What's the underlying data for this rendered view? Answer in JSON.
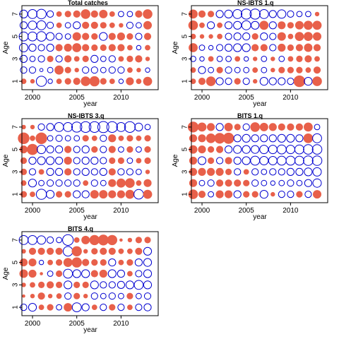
{
  "chart_data": [
    {
      "type": "scatter",
      "title": "Total catches",
      "xlabel": "year",
      "ylabel": "Age",
      "xlim": [
        1998.8,
        2014.2
      ],
      "ylim": [
        0.25,
        7.75
      ],
      "xticks": [
        2000,
        2005,
        2010
      ],
      "yticks": [
        1,
        3,
        5,
        7
      ],
      "series": [
        {
          "color": "#e8604a",
          "fill": "solid"
        },
        {
          "color": "#0000d0",
          "fill": "open"
        }
      ],
      "years": [
        1999,
        2000,
        2001,
        2002,
        2003,
        2004,
        2005,
        2006,
        2007,
        2008,
        2009,
        2010,
        2011,
        2012,
        2013
      ],
      "ages": [
        1,
        2,
        3,
        4,
        5,
        6,
        7
      ],
      "residuals": [
        [
          0.3,
          0.2,
          -1.0,
          -0.2,
          0.3,
          0.4,
          0.5,
          0.9,
          1.0,
          0.4,
          0.3,
          -0.2,
          0.6,
          0.3,
          0.8
        ],
        [
          -0.4,
          -0.4,
          -0.1,
          -0.3,
          0.8,
          0.4,
          0.2,
          -0.4,
          -0.4,
          -0.3,
          -0.4,
          -0.4,
          0.3,
          0.2,
          -0.2
        ],
        [
          -0.5,
          -0.3,
          -0.4,
          0.4,
          -0.4,
          0.5,
          0.3,
          0.4,
          -0.5,
          -0.3,
          -0.4,
          0.3,
          0.4,
          0.5,
          0.2
        ],
        [
          -0.7,
          -0.5,
          -0.4,
          -0.5,
          0.5,
          0.6,
          0.8,
          0.5,
          0.4,
          0.4,
          0.5,
          0.5,
          0.3,
          -0.2,
          0.3
        ],
        [
          -0.8,
          -0.8,
          -0.9,
          -0.6,
          -0.4,
          -0.3,
          0.7,
          0.5,
          0.4,
          -0.6,
          0.5,
          0.6,
          0.4,
          -0.4,
          0.5
        ],
        [
          -0.5,
          -0.7,
          -0.8,
          -0.4,
          0.3,
          -0.3,
          -0.5,
          0.5,
          0.5,
          0.4,
          0.3,
          0.2,
          -0.4,
          -0.3,
          0.7
        ],
        [
          -0.6,
          -0.8,
          -0.9,
          -0.4,
          0.3,
          0.4,
          0.5,
          0.9,
          0.5,
          0.7,
          0.3,
          -0.3,
          -0.3,
          0.5,
          0.9
        ]
      ]
    },
    {
      "type": "scatter",
      "title": "NS-IBTS 1.q",
      "xlabel": "year",
      "ylabel": "Age",
      "xlim": [
        1998.8,
        2014.2
      ],
      "ylim": [
        0.25,
        7.75
      ],
      "xticks": [
        2000,
        2005,
        2010
      ],
      "yticks": [
        1,
        3,
        5,
        7
      ],
      "series": [
        {
          "color": "#e8604a",
          "fill": "solid"
        },
        {
          "color": "#0000d0",
          "fill": "open"
        }
      ],
      "years": [
        1999,
        2000,
        2001,
        2002,
        2003,
        2004,
        2005,
        2006,
        2007,
        2008,
        2009,
        2010,
        2011,
        2012,
        2013
      ],
      "ages": [
        1,
        2,
        3,
        4,
        5,
        6,
        7
      ],
      "residuals": [
        [
          0.3,
          0.5,
          0.9,
          -0.5,
          -0.4,
          0.4,
          -0.4,
          0.2,
          -0.6,
          -0.5,
          -0.5,
          -0.4,
          1.3,
          -0.6,
          0.9
        ],
        [
          0.3,
          -0.5,
          -0.3,
          0.4,
          -0.4,
          -0.3,
          -0.3,
          0.3,
          -0.3,
          0.2,
          0.4,
          0.4,
          0.4,
          0.3,
          0.5
        ],
        [
          -0.3,
          -0.2,
          0.3,
          -0.3,
          -0.3,
          0.3,
          -0.2,
          0.2,
          -0.3,
          0.2,
          -0.3,
          0.3,
          0.4,
          0.5,
          0.3
        ],
        [
          0.8,
          -0.3,
          -0.2,
          -0.4,
          -0.5,
          -0.6,
          -0.6,
          0.5,
          0.5,
          -0.4,
          0.6,
          0.4,
          0.5,
          0.7,
          0.5
        ],
        [
          0.3,
          0.2,
          0.2,
          0.3,
          -0.4,
          -0.5,
          -0.5,
          0.4,
          -0.5,
          -0.4,
          0.7,
          0.3,
          0.8,
          0.8,
          0.7
        ],
        [
          0.9,
          0.3,
          -0.5,
          0.3,
          -0.5,
          -0.6,
          -0.8,
          -0.6,
          0.8,
          -0.5,
          0.6,
          0.4,
          0.7,
          0.8,
          0.8
        ],
        [
          0.8,
          0.5,
          0.4,
          -0.5,
          -0.6,
          -0.8,
          -1.0,
          -1.0,
          -0.8,
          -0.5,
          -0.7,
          -0.4,
          -0.3,
          -0.3,
          0.2
        ]
      ]
    },
    {
      "type": "scatter",
      "title": "NS-IBTS 3.q",
      "xlabel": "year",
      "ylabel": "Age",
      "xlim": [
        1998.8,
        2014.2
      ],
      "ylim": [
        0.25,
        7.75
      ],
      "xticks": [
        2000,
        2005,
        2010
      ],
      "yticks": [
        1,
        3,
        5,
        7
      ],
      "series": [
        {
          "color": "#e8604a",
          "fill": "solid"
        },
        {
          "color": "#0000d0",
          "fill": "open"
        }
      ],
      "years": [
        1999,
        2000,
        2001,
        2002,
        2003,
        2004,
        2005,
        2006,
        2007,
        2008,
        2009,
        2010,
        2011,
        2012,
        2013
      ],
      "ages": [
        1,
        2,
        3,
        4,
        5,
        6,
        7
      ],
      "residuals": [
        [
          0.4,
          0.3,
          -1.0,
          -0.6,
          0.4,
          0.4,
          -0.5,
          -0.5,
          0.7,
          0.7,
          0.6,
          0.6,
          0.8,
          -0.9,
          0.8
        ],
        [
          0.3,
          -0.6,
          -0.3,
          -0.4,
          -0.4,
          -0.4,
          -0.4,
          0.3,
          -0.4,
          -0.3,
          0.6,
          0.8,
          0.9,
          0.3,
          0.6
        ],
        [
          0.4,
          -0.4,
          0.3,
          -0.5,
          -0.5,
          0.5,
          -0.4,
          -0.5,
          -0.4,
          -0.5,
          0.5,
          -0.4,
          -0.4,
          -0.3,
          0.2
        ],
        [
          0.4,
          -0.5,
          -0.6,
          -0.6,
          -0.5,
          0.6,
          -0.4,
          -0.5,
          -0.5,
          -0.4,
          0.4,
          0.4,
          -0.3,
          0.3,
          0.4
        ],
        [
          0.6,
          1.2,
          -0.7,
          -0.5,
          -0.5,
          0.5,
          -0.4,
          -0.5,
          0.4,
          -0.4,
          0.5,
          -0.3,
          0.4,
          -0.3,
          0.4
        ],
        [
          1.3,
          0.3,
          1.3,
          -0.3,
          -0.4,
          -0.3,
          -0.3,
          0.4,
          0.3,
          -0.4,
          0.6,
          0.3,
          0.4,
          0.3,
          0.4
        ],
        [
          0.2,
          0.2,
          -0.4,
          -0.5,
          -0.8,
          -0.8,
          -1.0,
          -1.1,
          -1.1,
          -1.2,
          -1.1,
          -0.8,
          -1.1,
          -0.6,
          -0.3
        ]
      ]
    },
    {
      "type": "scatter",
      "title": "BITS 1.q",
      "xlabel": "year",
      "ylabel": "Age",
      "xlim": [
        1998.8,
        2014.2
      ],
      "ylim": [
        0.25,
        7.75
      ],
      "xticks": [
        2000,
        2005,
        2010
      ],
      "yticks": [
        1,
        3,
        5,
        7
      ],
      "series": [
        {
          "color": "#e8604a",
          "fill": "solid"
        },
        {
          "color": "#0000d0",
          "fill": "open"
        }
      ],
      "years": [
        1999,
        2000,
        2001,
        2002,
        2003,
        2004,
        2005,
        2006,
        2007,
        2008,
        2009,
        2010,
        2011,
        2012,
        2013
      ],
      "ages": [
        1,
        2,
        3,
        4,
        5,
        6,
        7
      ],
      "residuals": [
        [
          0.9,
          0.5,
          -0.3,
          0.6,
          0.6,
          -0.5,
          0.4,
          0.4,
          -0.6,
          0.2,
          -0.4,
          -0.4,
          0.4,
          -0.4,
          0.7
        ],
        [
          0.6,
          -0.3,
          -0.4,
          0.5,
          0.5,
          0.5,
          0.4,
          -0.4,
          -0.3,
          -0.2,
          -0.3,
          -0.4,
          -0.3,
          -0.5,
          -0.7
        ],
        [
          0.6,
          0.6,
          0.6,
          0.6,
          0.4,
          -0.4,
          0.3,
          -0.4,
          -0.3,
          -0.4,
          -0.4,
          -0.5,
          -0.5,
          -0.6,
          -0.7
        ],
        [
          0.6,
          -0.6,
          0.4,
          -0.4,
          0.5,
          -0.5,
          -0.6,
          -0.8,
          -0.7,
          -0.7,
          -0.8,
          -0.8,
          -0.8,
          -0.9,
          -0.9
        ],
        [
          0.7,
          0.6,
          0.4,
          0.5,
          -0.5,
          -0.6,
          -0.6,
          -0.6,
          -0.7,
          -0.7,
          -0.8,
          -0.7,
          -0.8,
          -0.9,
          -0.9
        ],
        [
          0.6,
          0.6,
          0.9,
          1.1,
          1.2,
          -0.5,
          -0.6,
          -0.5,
          -0.5,
          -0.5,
          -0.6,
          -0.6,
          -0.5,
          0.9,
          -0.8
        ],
        [
          1.1,
          0.8,
          0.6,
          -0.5,
          0.7,
          0.4,
          -0.4,
          0.9,
          0.7,
          0.6,
          0.5,
          0.5,
          0.5,
          0.8,
          -0.3
        ]
      ]
    },
    {
      "type": "scatter",
      "title": "BITS 4.q",
      "xlabel": "year",
      "ylabel": "Age",
      "xlim": [
        1998.8,
        2014.2
      ],
      "ylim": [
        0.25,
        7.75
      ],
      "xticks": [
        2000,
        2005,
        2010
      ],
      "yticks": [
        1,
        3,
        5,
        7
      ],
      "series": [
        {
          "color": "#e8604a",
          "fill": "solid"
        },
        {
          "color": "#0000d0",
          "fill": "open"
        }
      ],
      "years": [
        1999,
        2000,
        2001,
        2002,
        2003,
        2004,
        2005,
        2006,
        2007,
        2008,
        2009,
        2010,
        2011,
        2012,
        2013
      ],
      "ages": [
        1,
        2,
        3,
        4,
        5,
        6,
        7
      ],
      "residuals": [
        [
          -0.4,
          -0.6,
          0.3,
          0.4,
          -0.3,
          0.7,
          -0.8,
          -0.5,
          0.3,
          -0.4,
          0.4,
          -0.4,
          0.3,
          -0.4,
          -0.5
        ],
        [
          0.1,
          0.2,
          0.5,
          0.2,
          0.3,
          -0.4,
          0.4,
          0.2,
          -0.4,
          -0.3,
          -0.4,
          -0.3,
          0.4,
          -0.3,
          -0.4
        ],
        [
          0.2,
          0.3,
          0.4,
          0.5,
          0.4,
          -0.6,
          0.4,
          0.4,
          -0.6,
          -0.4,
          -0.4,
          -0.5,
          -0.6,
          -0.8,
          -0.6
        ],
        [
          0.7,
          0.6,
          0.1,
          -0.3,
          0.4,
          -0.8,
          -0.6,
          -0.6,
          0.5,
          0.6,
          -0.6,
          -0.5,
          0.3,
          -0.4,
          -0.6
        ],
        [
          0.6,
          0.6,
          -0.2,
          0.3,
          0.4,
          0.8,
          1.0,
          0.5,
          0.4,
          0.4,
          -0.5,
          0.3,
          0.4,
          -0.5,
          -0.6
        ],
        [
          0.2,
          0.5,
          0.5,
          0.5,
          0.5,
          -0.9,
          1.0,
          0.2,
          0.4,
          0.5,
          0.5,
          0.3,
          0.3,
          0.5,
          -0.6
        ],
        [
          -0.8,
          -0.8,
          -0.7,
          -0.4,
          -0.3,
          -1.1,
          0.3,
          0.7,
          1.0,
          1.1,
          1.0,
          0.1,
          0.2,
          0.4,
          0.4
        ]
      ]
    }
  ]
}
